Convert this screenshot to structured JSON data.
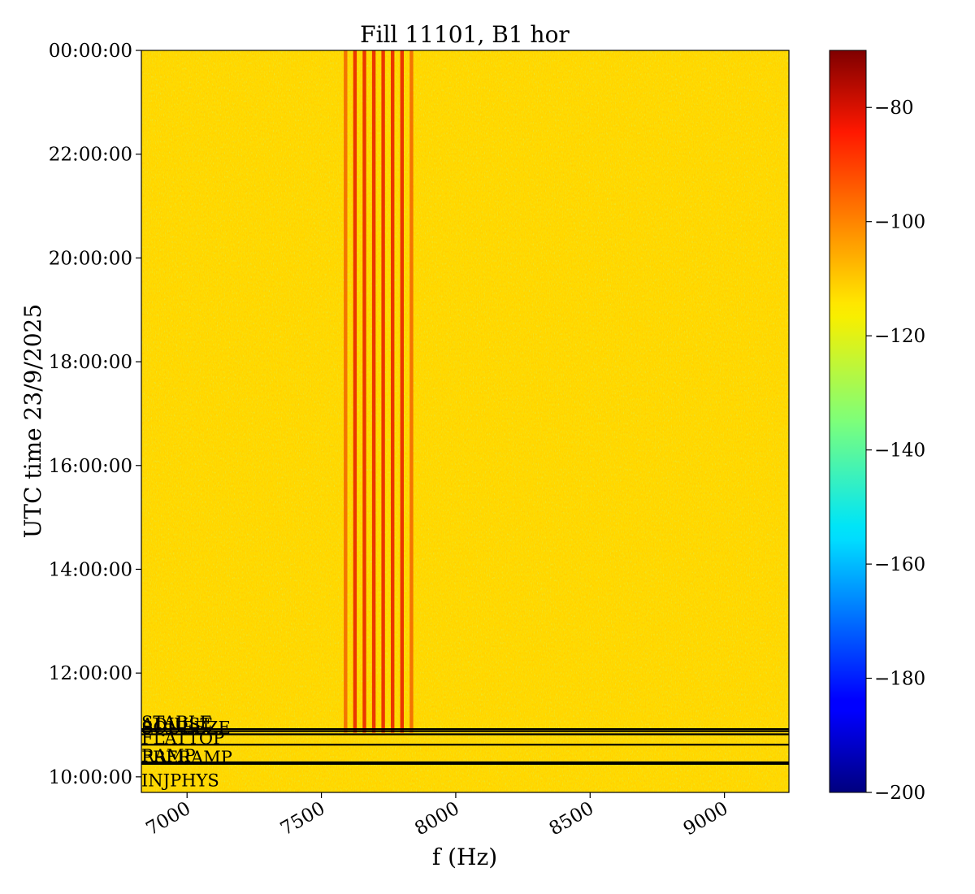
{
  "chart_data": {
    "type": "heatmap",
    "title": "Fill 11101, B1 hor",
    "xlabel": "f (Hz)",
    "ylabel": "UTC time 23/9/2025",
    "xlim": [
      6830,
      9240
    ],
    "ylim_hours": [
      9.7,
      24.0
    ],
    "x_ticks": [
      {
        "value": 7000,
        "label": "7000"
      },
      {
        "value": 7500,
        "label": "7500"
      },
      {
        "value": 8000,
        "label": "8000"
      },
      {
        "value": 8500,
        "label": "8500"
      },
      {
        "value": 9000,
        "label": "9000"
      }
    ],
    "y_ticks": [
      {
        "hours": 10,
        "label": "10:00:00"
      },
      {
        "hours": 12,
        "label": "12:00:00"
      },
      {
        "hours": 14,
        "label": "14:00:00"
      },
      {
        "hours": 16,
        "label": "16:00:00"
      },
      {
        "hours": 18,
        "label": "18:00:00"
      },
      {
        "hours": 20,
        "label": "20:00:00"
      },
      {
        "hours": 22,
        "label": "22:00:00"
      },
      {
        "hours": 24,
        "label": "00:00:00"
      }
    ],
    "colorbar": {
      "colormap": "jet",
      "min": -200,
      "max": -70,
      "ticks": [
        {
          "value": -200,
          "label": "−200"
        },
        {
          "value": -180,
          "label": "−180"
        },
        {
          "value": -160,
          "label": "−160"
        },
        {
          "value": -140,
          "label": "−140"
        },
        {
          "value": -120,
          "label": "−120"
        },
        {
          "value": -100,
          "label": "−100"
        },
        {
          "value": -80,
          "label": "−80"
        }
      ]
    },
    "background_level": -114,
    "lines_hz": [
      7590,
      7625,
      7660,
      7695,
      7730,
      7765,
      7800,
      7835
    ],
    "line_start_hours": 10.85,
    "line_end_hours": 24.0,
    "phases": [
      {
        "label": "INJPHYS",
        "hours": 9.8
      },
      {
        "label": "PRERAMP",
        "hours": 10.25
      },
      {
        "label": "RAMP",
        "hours": 10.28
      },
      {
        "label": "FLATTOP",
        "hours": 10.62
      },
      {
        "label": "SQUEEZE",
        "hours": 10.82
      },
      {
        "label": "ADJUST",
        "hours": 10.88
      },
      {
        "label": "STABLE",
        "hours": 10.92
      }
    ]
  }
}
